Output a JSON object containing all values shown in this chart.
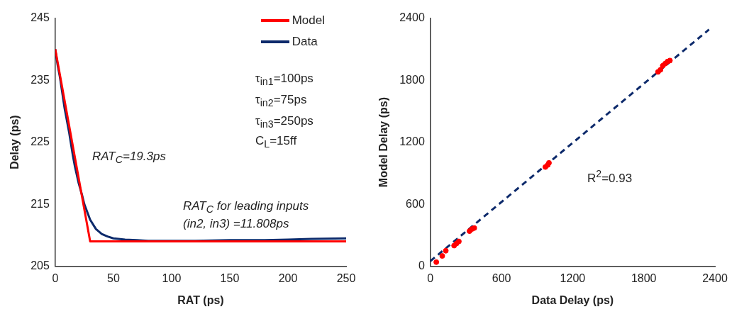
{
  "chart_data": [
    {
      "type": "line",
      "xlabel": "RAT (ps)",
      "ylabel": "Delay (ps)",
      "xlim": [
        0,
        250
      ],
      "xticks": [
        0,
        50,
        100,
        150,
        200,
        250
      ],
      "ylim": [
        205,
        245
      ],
      "yticks": [
        205,
        215,
        225,
        235,
        245
      ],
      "legend": "top right",
      "grid": false,
      "line_style": "solid",
      "marker": "none",
      "series": [
        {
          "name": "Model",
          "color": "#ff0000",
          "x": [
            0,
            30,
            250
          ],
          "values": [
            240,
            209,
            209
          ]
        },
        {
          "name": "Data",
          "color": "#0d2a6b",
          "x": [
            0,
            2,
            4,
            6,
            8,
            10,
            12,
            15,
            17,
            20,
            23,
            25,
            28,
            30,
            35,
            40,
            45,
            50,
            60,
            70,
            80,
            100,
            120,
            150,
            180,
            200,
            220,
            250
          ],
          "values": [
            240,
            237.5,
            235.5,
            233,
            230.5,
            228.5,
            226.5,
            223,
            221,
            218.5,
            216.5,
            215,
            213.5,
            212.5,
            211,
            210.2,
            209.8,
            209.5,
            209.3,
            209.2,
            209.1,
            209.1,
            209.1,
            209.2,
            209.2,
            209.3,
            209.4,
            209.5
          ]
        }
      ],
      "annotations": [
        "τ$_{in1}$=100ps",
        "τ$_{in2}$=75ps",
        "τ$_{in3}$=250ps",
        "C$_{L}$=15ff",
        "RAT$_{C}$=19.3ps",
        "RAT$_{C}$ for leading inputs (in2, in3) =11.808ps"
      ]
    },
    {
      "type": "scatter",
      "xlabel": "Data Delay (ps)",
      "ylabel": "Model Delay (ps)",
      "xlim": [
        0,
        2400
      ],
      "xticks": [
        0,
        600,
        1200,
        1800,
        2400
      ],
      "ylim": [
        0,
        2400
      ],
      "yticks": [
        0,
        600,
        1200,
        1800,
        2400
      ],
      "legend": false,
      "grid": false,
      "marker": "circle",
      "series": [
        {
          "color": "#ff0000",
          "x": [
            50,
            100,
            130,
            200,
            220,
            240,
            330,
            350,
            370,
            970,
            990,
            1000,
            1920,
            1940,
            1960,
            1980,
            2000,
            2020
          ],
          "values": [
            40,
            100,
            150,
            200,
            220,
            240,
            340,
            360,
            370,
            960,
            980,
            1000,
            1880,
            1900,
            1940,
            1960,
            1980,
            1990
          ]
        },
        {
          "type": "line",
          "color": "#0d2a6b",
          "line_style": "dashed",
          "marker": "none",
          "x": [
            0,
            2350
          ],
          "values": [
            50,
            2290
          ]
        }
      ],
      "annotations": [
        "R$^{2}$=0.93"
      ]
    }
  ]
}
